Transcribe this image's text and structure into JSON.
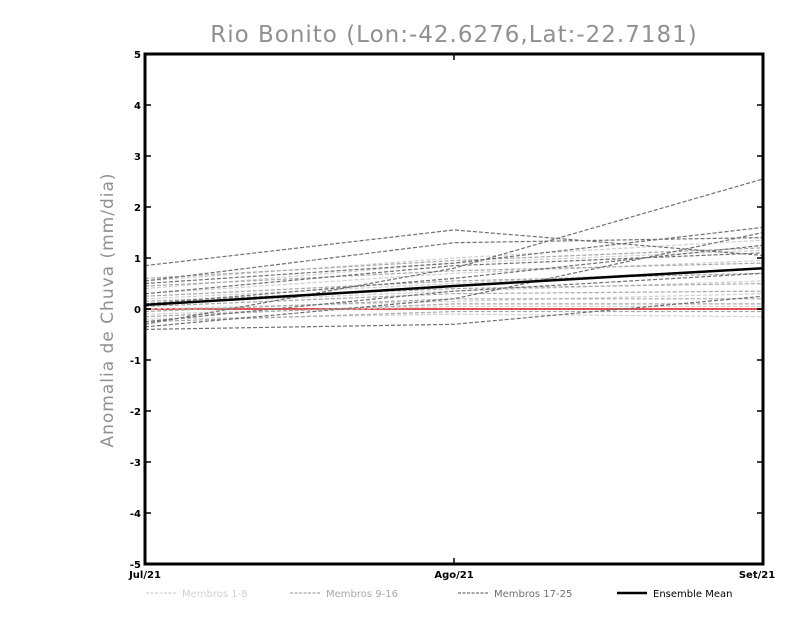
{
  "chart_data": {
    "type": "line",
    "title": "Rio Bonito (Lon:-42.6276,Lat:-22.7181)",
    "ylabel": "Anomalia de Chuva (mm/dia)",
    "xlabel": "",
    "categories": [
      "Jul/21",
      "Ago/21",
      "Set/21"
    ],
    "ylim": [
      -5,
      5
    ],
    "yticks": [
      "5",
      "4",
      "3",
      "2",
      "1",
      "0",
      "-1",
      "-2",
      "-3",
      "-4",
      "-5"
    ],
    "grid": false,
    "zero_line_color": "#e05050",
    "legend": [
      {
        "label": "Membros 1-8",
        "color": "#d0d0d0",
        "dashed": true
      },
      {
        "label": "Membros 9-16",
        "color": "#a8a8a8",
        "dashed": true
      },
      {
        "label": "Membros 17-25",
        "color": "#707070",
        "dashed": true
      },
      {
        "label": "Ensemble Mean",
        "color": "#000000",
        "dashed": false
      }
    ],
    "series": [
      {
        "group": 0,
        "values": [
          0.55,
          1.0,
          1.35
        ]
      },
      {
        "group": 0,
        "values": [
          0.4,
          0.9,
          1.15
        ]
      },
      {
        "group": 0,
        "values": [
          0.3,
          0.7,
          0.95
        ]
      },
      {
        "group": 0,
        "values": [
          0.2,
          0.5,
          0.8
        ]
      },
      {
        "group": 0,
        "values": [
          0.1,
          0.35,
          0.55
        ]
      },
      {
        "group": 0,
        "values": [
          0.0,
          0.15,
          0.3
        ]
      },
      {
        "group": 0,
        "values": [
          -0.1,
          0.05,
          0.05
        ]
      },
      {
        "group": 0,
        "values": [
          -0.2,
          -0.1,
          -0.15
        ]
      },
      {
        "group": 1,
        "values": [
          0.6,
          0.95,
          1.2
        ]
      },
      {
        "group": 1,
        "values": [
          0.45,
          0.75,
          0.9
        ]
      },
      {
        "group": 1,
        "values": [
          0.25,
          0.55,
          0.7
        ]
      },
      {
        "group": 1,
        "values": [
          0.15,
          0.4,
          0.5
        ]
      },
      {
        "group": 1,
        "values": [
          0.05,
          0.3,
          0.35
        ]
      },
      {
        "group": 1,
        "values": [
          -0.05,
          0.2,
          0.2
        ]
      },
      {
        "group": 1,
        "values": [
          -0.15,
          0.1,
          0.1
        ]
      },
      {
        "group": 1,
        "values": [
          -0.25,
          -0.05,
          -0.05
        ]
      },
      {
        "group": 2,
        "values": [
          0.85,
          1.55,
          1.05
        ]
      },
      {
        "group": 2,
        "values": [
          0.55,
          1.3,
          1.4
        ]
      },
      {
        "group": 2,
        "values": [
          0.5,
          0.9,
          1.6
        ]
      },
      {
        "group": 2,
        "values": [
          0.3,
          0.85,
          1.1
        ]
      },
      {
        "group": 2,
        "values": [
          -0.3,
          0.8,
          2.55
        ]
      },
      {
        "group": 2,
        "values": [
          0.1,
          0.6,
          1.25
        ]
      },
      {
        "group": 2,
        "values": [
          -0.35,
          0.2,
          1.5
        ]
      },
      {
        "group": 2,
        "values": [
          -0.25,
          0.35,
          0.7
        ]
      },
      {
        "group": 2,
        "values": [
          -0.4,
          -0.3,
          0.25
        ]
      }
    ],
    "mean": {
      "name": "Ensemble Mean",
      "values": [
        0.08,
        0.45,
        0.8
      ]
    }
  }
}
